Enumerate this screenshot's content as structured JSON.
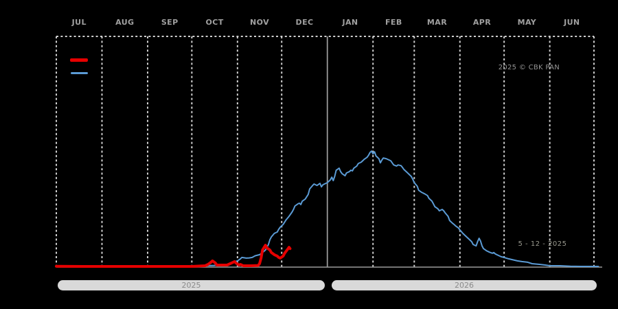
{
  "annotations": {
    "copyright": "2025 © CBK PAN",
    "date_label": "5 - 12 - 2025"
  },
  "legend": {
    "items": [
      {
        "name": "red-line",
        "color": "#e60000"
      },
      {
        "name": "blue-line",
        "color": "#5b9bd5"
      }
    ]
  },
  "footer": {
    "year_bars": [
      {
        "label": "2025"
      },
      {
        "label": "2026"
      }
    ]
  },
  "colors": {
    "background": "#000000",
    "grid_dashed": "#cfcfcf",
    "year_boundary_line": "#9a9a9a",
    "baseline": "#9a9a9a",
    "month_text": "#a0a0a0",
    "bar_fill": "#d9d9d9",
    "bar_text": "#8a8a8a"
  },
  "chart_data": {
    "type": "line",
    "title": "",
    "xlabel": "",
    "ylabel": "",
    "x_axis": {
      "tick_labels": [
        "JUL",
        "AUG",
        "SEP",
        "OCT",
        "NOV",
        "DEC",
        "JAN",
        "FEB",
        "MAR",
        "APR",
        "MAY",
        "JUN"
      ],
      "month_lengths": [
        31,
        31,
        30,
        31,
        30,
        31,
        31,
        28,
        31,
        30,
        31,
        30
      ],
      "x_unit": "days_since_2025-07-01",
      "range_days": [
        0,
        365
      ],
      "year_boundary_day": 184,
      "years": [
        "2025",
        "2026"
      ]
    },
    "y_axis": {
      "tick_labels_visible": false,
      "unit": "relative_height_fraction_of_plot",
      "range": [
        0,
        1
      ]
    },
    "grid": "vertical dashed lines at month boundaries; solid gray line at year boundary (Jan 1); solid gray baseline",
    "legend_position": "top-left (color swatches only, no visible text)",
    "series": [
      {
        "name": "blue-line",
        "color": "#5b9bd5",
        "stroke_width": 2,
        "points": [
          [
            0,
            0.003
          ],
          [
            30,
            0.003
          ],
          [
            60,
            0.003
          ],
          [
            80,
            0.004
          ],
          [
            92,
            0.006
          ],
          [
            100,
            0.006
          ],
          [
            107,
            0.007
          ],
          [
            111,
            0.01
          ],
          [
            116,
            0.012
          ],
          [
            120,
            0.021
          ],
          [
            123,
            0.027
          ],
          [
            125,
            0.036
          ],
          [
            126,
            0.042
          ],
          [
            129,
            0.039
          ],
          [
            131,
            0.04
          ],
          [
            133,
            0.042
          ],
          [
            135,
            0.049
          ],
          [
            138,
            0.054
          ],
          [
            140,
            0.063
          ],
          [
            142,
            0.074
          ],
          [
            144,
            0.098
          ],
          [
            145,
            0.119
          ],
          [
            146,
            0.131
          ],
          [
            148,
            0.146
          ],
          [
            150,
            0.152
          ],
          [
            151,
            0.164
          ],
          [
            152,
            0.173
          ],
          [
            154,
            0.185
          ],
          [
            156,
            0.205
          ],
          [
            158,
            0.22
          ],
          [
            160,
            0.238
          ],
          [
            161,
            0.25
          ],
          [
            162,
            0.265
          ],
          [
            164,
            0.274
          ],
          [
            165,
            0.277
          ],
          [
            166,
            0.271
          ],
          [
            167,
            0.286
          ],
          [
            169,
            0.295
          ],
          [
            171,
            0.315
          ],
          [
            172,
            0.339
          ],
          [
            174,
            0.354
          ],
          [
            175,
            0.36
          ],
          [
            177,
            0.354
          ],
          [
            179,
            0.363
          ],
          [
            180,
            0.348
          ],
          [
            181,
            0.357
          ],
          [
            184,
            0.366
          ],
          [
            186,
            0.378
          ],
          [
            187,
            0.39
          ],
          [
            188,
            0.375
          ],
          [
            189,
            0.393
          ],
          [
            190,
            0.42
          ],
          [
            192,
            0.429
          ],
          [
            193,
            0.414
          ],
          [
            194,
            0.405
          ],
          [
            196,
            0.396
          ],
          [
            197,
            0.408
          ],
          [
            199,
            0.414
          ],
          [
            200,
            0.42
          ],
          [
            201,
            0.417
          ],
          [
            202,
            0.429
          ],
          [
            204,
            0.438
          ],
          [
            205,
            0.449
          ],
          [
            207,
            0.455
          ],
          [
            208,
            0.461
          ],
          [
            209,
            0.467
          ],
          [
            211,
            0.476
          ],
          [
            212,
            0.485
          ],
          [
            213,
            0.497
          ],
          [
            214,
            0.503
          ],
          [
            215,
            0.491
          ],
          [
            216,
            0.5
          ],
          [
            217,
            0.482
          ],
          [
            219,
            0.47
          ],
          [
            220,
            0.452
          ],
          [
            221,
            0.464
          ],
          [
            222,
            0.473
          ],
          [
            224,
            0.47
          ],
          [
            225,
            0.467
          ],
          [
            227,
            0.461
          ],
          [
            228,
            0.452
          ],
          [
            229,
            0.443
          ],
          [
            231,
            0.438
          ],
          [
            232,
            0.443
          ],
          [
            234,
            0.44
          ],
          [
            235,
            0.432
          ],
          [
            236,
            0.423
          ],
          [
            238,
            0.411
          ],
          [
            239,
            0.405
          ],
          [
            241,
            0.393
          ],
          [
            242,
            0.381
          ],
          [
            243,
            0.366
          ],
          [
            245,
            0.351
          ],
          [
            246,
            0.333
          ],
          [
            248,
            0.324
          ],
          [
            249,
            0.321
          ],
          [
            250,
            0.318
          ],
          [
            252,
            0.31
          ],
          [
            253,
            0.298
          ],
          [
            255,
            0.286
          ],
          [
            256,
            0.274
          ],
          [
            257,
            0.262
          ],
          [
            259,
            0.253
          ],
          [
            260,
            0.244
          ],
          [
            262,
            0.25
          ],
          [
            263,
            0.244
          ],
          [
            264,
            0.235
          ],
          [
            266,
            0.22
          ],
          [
            267,
            0.202
          ],
          [
            269,
            0.19
          ],
          [
            270,
            0.185
          ],
          [
            271,
            0.179
          ],
          [
            273,
            0.17
          ],
          [
            274,
            0.161
          ],
          [
            276,
            0.146
          ],
          [
            278,
            0.134
          ],
          [
            280,
            0.122
          ],
          [
            282,
            0.11
          ],
          [
            283,
            0.098
          ],
          [
            285,
            0.092
          ],
          [
            286,
            0.11
          ],
          [
            287,
            0.125
          ],
          [
            288,
            0.113
          ],
          [
            289,
            0.092
          ],
          [
            290,
            0.08
          ],
          [
            292,
            0.071
          ],
          [
            294,
            0.065
          ],
          [
            296,
            0.06
          ],
          [
            297,
            0.063
          ],
          [
            298,
            0.057
          ],
          [
            300,
            0.051
          ],
          [
            302,
            0.045
          ],
          [
            304,
            0.042
          ],
          [
            307,
            0.036
          ],
          [
            309,
            0.033
          ],
          [
            313,
            0.027
          ],
          [
            316,
            0.024
          ],
          [
            320,
            0.021
          ],
          [
            323,
            0.015
          ],
          [
            328,
            0.012
          ],
          [
            332,
            0.009
          ],
          [
            335,
            0.006
          ],
          [
            342,
            0.006
          ],
          [
            349,
            0.004
          ],
          [
            356,
            0.003
          ],
          [
            363,
            0.003
          ],
          [
            368,
            0.003
          ]
        ]
      },
      {
        "name": "red-line",
        "color": "#e60000",
        "stroke_width": 4,
        "points": [
          [
            0,
            0.004
          ],
          [
            18,
            0.003
          ],
          [
            36,
            0.003
          ],
          [
            55,
            0.003
          ],
          [
            74,
            0.003
          ],
          [
            92,
            0.003
          ],
          [
            101,
            0.006
          ],
          [
            103,
            0.012
          ],
          [
            105,
            0.021
          ],
          [
            106,
            0.027
          ],
          [
            108,
            0.018
          ],
          [
            109,
            0.009
          ],
          [
            112,
            0.009
          ],
          [
            116,
            0.009
          ],
          [
            118,
            0.015
          ],
          [
            121,
            0.024
          ],
          [
            122,
            0.018
          ],
          [
            124,
            0.009
          ],
          [
            125,
            0.012
          ],
          [
            127,
            0.006
          ],
          [
            132,
            0.006
          ],
          [
            137,
            0.007
          ],
          [
            138,
            0.015
          ],
          [
            139,
            0.039
          ],
          [
            140,
            0.074
          ],
          [
            142,
            0.095
          ],
          [
            143,
            0.083
          ],
          [
            145,
            0.074
          ],
          [
            146,
            0.063
          ],
          [
            148,
            0.054
          ],
          [
            150,
            0.048
          ],
          [
            151,
            0.042
          ],
          [
            152,
            0.039
          ],
          [
            154,
            0.048
          ],
          [
            155,
            0.06
          ],
          [
            157,
            0.077
          ],
          [
            158,
            0.086
          ],
          [
            158.7,
            0.08
          ]
        ]
      }
    ],
    "annotations": [
      {
        "text": "5 - 12 - 2025",
        "meaning_position": "lower right of plot"
      },
      {
        "text": "2025 © CBK PAN",
        "meaning_position": "upper right of plot"
      }
    ]
  }
}
